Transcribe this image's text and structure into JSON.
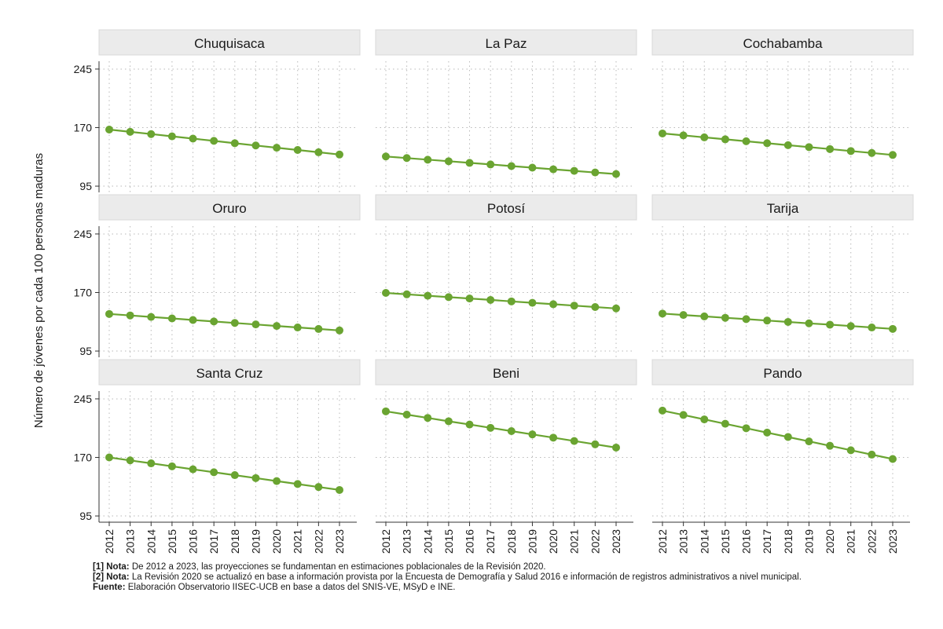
{
  "chart_data": {
    "type": "line",
    "ylabel": "Número de jóvenes por cada 100 personas maduras",
    "xlabel": "",
    "x": [
      "2012",
      "2013",
      "2014",
      "2015",
      "2016",
      "2017",
      "2018",
      "2019",
      "2020",
      "2021",
      "2022",
      "2023"
    ],
    "ylim": [
      87,
      255
    ],
    "yticks": [
      95,
      170,
      245
    ],
    "grid": true,
    "colors": {
      "line": "#6aa431",
      "panel_header_bg": "#ebebeb",
      "grid": "#b8b8b8"
    },
    "panels": [
      {
        "name": "Chuquisaca",
        "values": [
          167.5,
          164.6,
          161.7,
          158.8,
          155.9,
          153.0,
          150.0,
          147.1,
          144.2,
          141.3,
          138.4,
          135.5
        ]
      },
      {
        "name": "La Paz",
        "values": [
          133.0,
          131.0,
          128.9,
          126.9,
          124.8,
          122.8,
          120.7,
          118.7,
          116.6,
          114.6,
          112.5,
          110.5
        ]
      },
      {
        "name": "Cochabamba",
        "values": [
          162.5,
          160.0,
          157.5,
          155.0,
          152.5,
          150.0,
          147.5,
          145.0,
          142.5,
          140.0,
          137.5,
          135.0
        ]
      },
      {
        "name": "Oruro",
        "values": [
          142.5,
          140.6,
          138.7,
          136.8,
          134.8,
          132.9,
          131.0,
          129.1,
          127.1,
          125.2,
          123.3,
          121.4
        ]
      },
      {
        "name": "Potosí",
        "values": [
          169.5,
          167.7,
          165.9,
          164.1,
          162.3,
          160.5,
          158.6,
          156.8,
          155.0,
          153.2,
          151.4,
          149.6
        ]
      },
      {
        "name": "Tarija",
        "values": [
          143.0,
          141.2,
          139.4,
          137.6,
          135.9,
          134.1,
          132.3,
          130.5,
          128.8,
          127.0,
          125.2,
          123.4
        ]
      },
      {
        "name": "Santa Cruz",
        "values": [
          170.0,
          166.2,
          162.4,
          158.6,
          154.8,
          151.0,
          147.3,
          143.5,
          139.7,
          135.9,
          132.1,
          128.3
        ]
      },
      {
        "name": "Beni",
        "values": [
          229.0,
          224.8,
          220.6,
          216.3,
          212.1,
          207.9,
          203.7,
          199.5,
          195.3,
          191.0,
          186.8,
          182.6
        ]
      },
      {
        "name": "Pando",
        "values": [
          230.0,
          224.4,
          218.7,
          213.1,
          207.4,
          201.8,
          196.2,
          190.5,
          184.9,
          179.2,
          173.6,
          168.0
        ]
      }
    ]
  },
  "notes": [
    {
      "label": "[1] Nota:",
      "text": " De 2012 a 2023, las proyecciones se fundamentan en estimaciones poblacionales de la Revisión 2020."
    },
    {
      "label": "[2] Nota:",
      "text": " La Revisión 2020 se actualizó en base a información provista por la Encuesta de Demografía y Salud 2016 e información de registros administrativos a nivel municipal."
    },
    {
      "label": "Fuente:",
      "text": " Elaboración Observatorio IISEC-UCB en base a datos del SNIS-VE, MSyD e INE."
    }
  ]
}
